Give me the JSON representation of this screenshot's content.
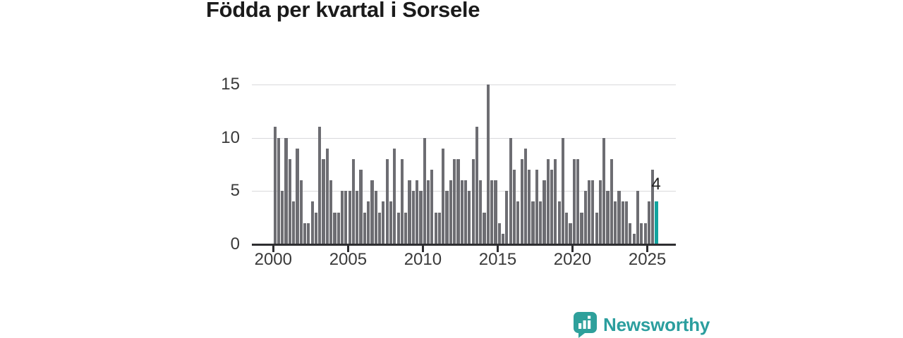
{
  "title": "Födda per kvartal i Sorsele",
  "chart_data": {
    "type": "bar",
    "title": "Födda per kvartal i Sorsele",
    "frequency": "quarterly",
    "start": "2000 Q1",
    "end": "2025 Q3",
    "values": [
      11,
      10,
      5,
      10,
      8,
      4,
      9,
      6,
      2,
      2,
      4,
      3,
      11,
      8,
      9,
      6,
      3,
      3,
      5,
      5,
      5,
      8,
      5,
      7,
      3,
      4,
      6,
      5,
      3,
      4,
      8,
      4,
      9,
      3,
      8,
      3,
      6,
      5,
      6,
      5,
      10,
      6,
      7,
      3,
      3,
      9,
      5,
      6,
      8,
      8,
      6,
      6,
      5,
      8,
      11,
      6,
      3,
      15,
      6,
      6,
      2,
      1,
      5,
      10,
      7,
      4,
      8,
      9,
      7,
      4,
      7,
      4,
      6,
      8,
      7,
      8,
      4,
      10,
      3,
      2,
      8,
      8,
      3,
      5,
      6,
      6,
      3,
      6,
      10,
      5,
      8,
      4,
      5,
      4,
      4,
      2,
      1,
      5,
      2,
      2,
      4,
      7,
      4
    ],
    "x_tick_labels": [
      "2000",
      "2005",
      "2010",
      "2015",
      "2020",
      "2025"
    ],
    "x_tick_years": [
      2000,
      2005,
      2010,
      2015,
      2020,
      2025
    ],
    "y_ticks": [
      0,
      5,
      10,
      15
    ],
    "ylim": [
      0,
      15
    ],
    "grid": true,
    "legend": false,
    "bar_color": "#6d6d72",
    "highlight_color": "#12a49f",
    "highlight": {
      "index": 102,
      "quarter": "2025 Q3",
      "value": 4,
      "label": "4"
    }
  },
  "footer": {
    "brand": "Newsworthy",
    "brand_color": "#2b9e9e",
    "icon": "newsworthy-bars-speech-bubble-icon"
  }
}
